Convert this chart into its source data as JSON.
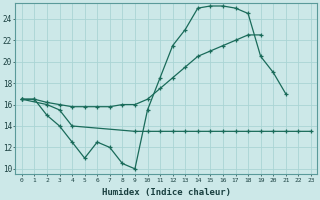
{
  "xlabel": "Humidex (Indice chaleur)",
  "background_color": "#cce8e8",
  "grid_color": "#aad4d4",
  "line_color": "#1a6b5a",
  "xlim": [
    -0.5,
    23.5
  ],
  "ylim": [
    9.5,
    25.5
  ],
  "yticks": [
    10,
    12,
    14,
    16,
    18,
    20,
    22,
    24
  ],
  "xticks": [
    0,
    1,
    2,
    3,
    4,
    5,
    6,
    7,
    8,
    9,
    10,
    11,
    12,
    13,
    14,
    15,
    16,
    17,
    18,
    19,
    20,
    21,
    22,
    23
  ],
  "line1_x": [
    0,
    1,
    2,
    3,
    4,
    5,
    6,
    7,
    8,
    9,
    10,
    11,
    12,
    13,
    14,
    15,
    16,
    17,
    18,
    19,
    20,
    21
  ],
  "line1_y": [
    16.5,
    16.5,
    15.0,
    14.0,
    12.5,
    11.0,
    12.5,
    12.0,
    10.5,
    10.0,
    15.5,
    18.5,
    21.5,
    23.0,
    25.0,
    25.2,
    25.2,
    25.0,
    24.5,
    20.5,
    19.0,
    17.0
  ],
  "line2_x": [
    0,
    1,
    2,
    3,
    4,
    5,
    6,
    7,
    8,
    9,
    10,
    11,
    12,
    13,
    14,
    15,
    16,
    17,
    18,
    19
  ],
  "line2_y": [
    16.5,
    16.5,
    16.2,
    16.0,
    15.8,
    15.8,
    15.8,
    15.8,
    16.0,
    16.0,
    16.5,
    17.5,
    18.5,
    19.5,
    20.5,
    21.0,
    21.5,
    22.0,
    22.5,
    22.5
  ],
  "line3_x": [
    0,
    2,
    3,
    4,
    9,
    10,
    11,
    12,
    13,
    14,
    15,
    16,
    17,
    18,
    19,
    20,
    21,
    22,
    23
  ],
  "line3_y": [
    16.5,
    16.0,
    15.5,
    14.0,
    13.5,
    13.5,
    13.5,
    13.5,
    13.5,
    13.5,
    13.5,
    13.5,
    13.5,
    13.5,
    13.5,
    13.5,
    13.5,
    13.5,
    13.5
  ]
}
